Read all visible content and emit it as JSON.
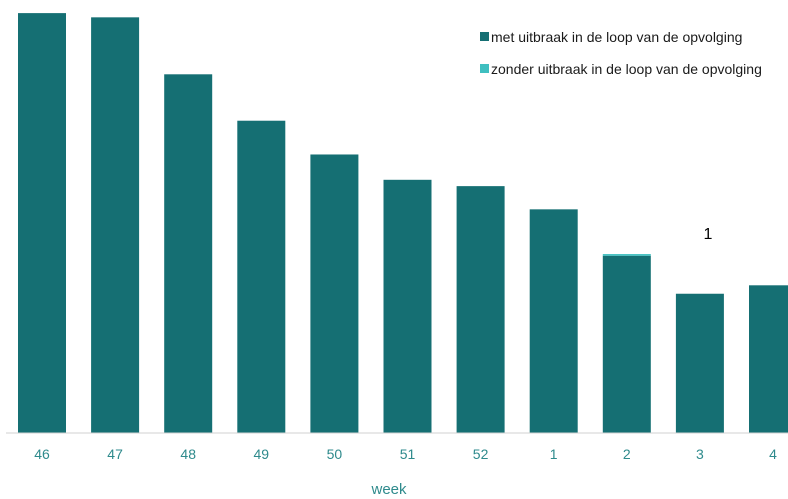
{
  "chart_data": {
    "type": "bar",
    "stacked": true,
    "xlabel": "week",
    "ylabel": "",
    "ylim": [
      0,
      100
    ],
    "categories": [
      "46",
      "47",
      "48",
      "49",
      "50",
      "51",
      "52",
      "1",
      "2",
      "3",
      "4"
    ],
    "series": [
      {
        "name": "met uitbraak in de loop van de opvolging",
        "color": "#156f73",
        "values": [
          99.5,
          98.5,
          85,
          74,
          66,
          60,
          58.5,
          53,
          42,
          33,
          35
        ]
      },
      {
        "name": "zonder uitbraak in de loop van de opvolging",
        "color": "#3fbfc0",
        "values": [
          0,
          0,
          0,
          0,
          0,
          0,
          0,
          0,
          0.4,
          0,
          0
        ]
      }
    ],
    "data_labels": [
      {
        "category": "3",
        "text": "1"
      }
    ],
    "legend": {
      "position": "top-right"
    },
    "grid": false
  }
}
